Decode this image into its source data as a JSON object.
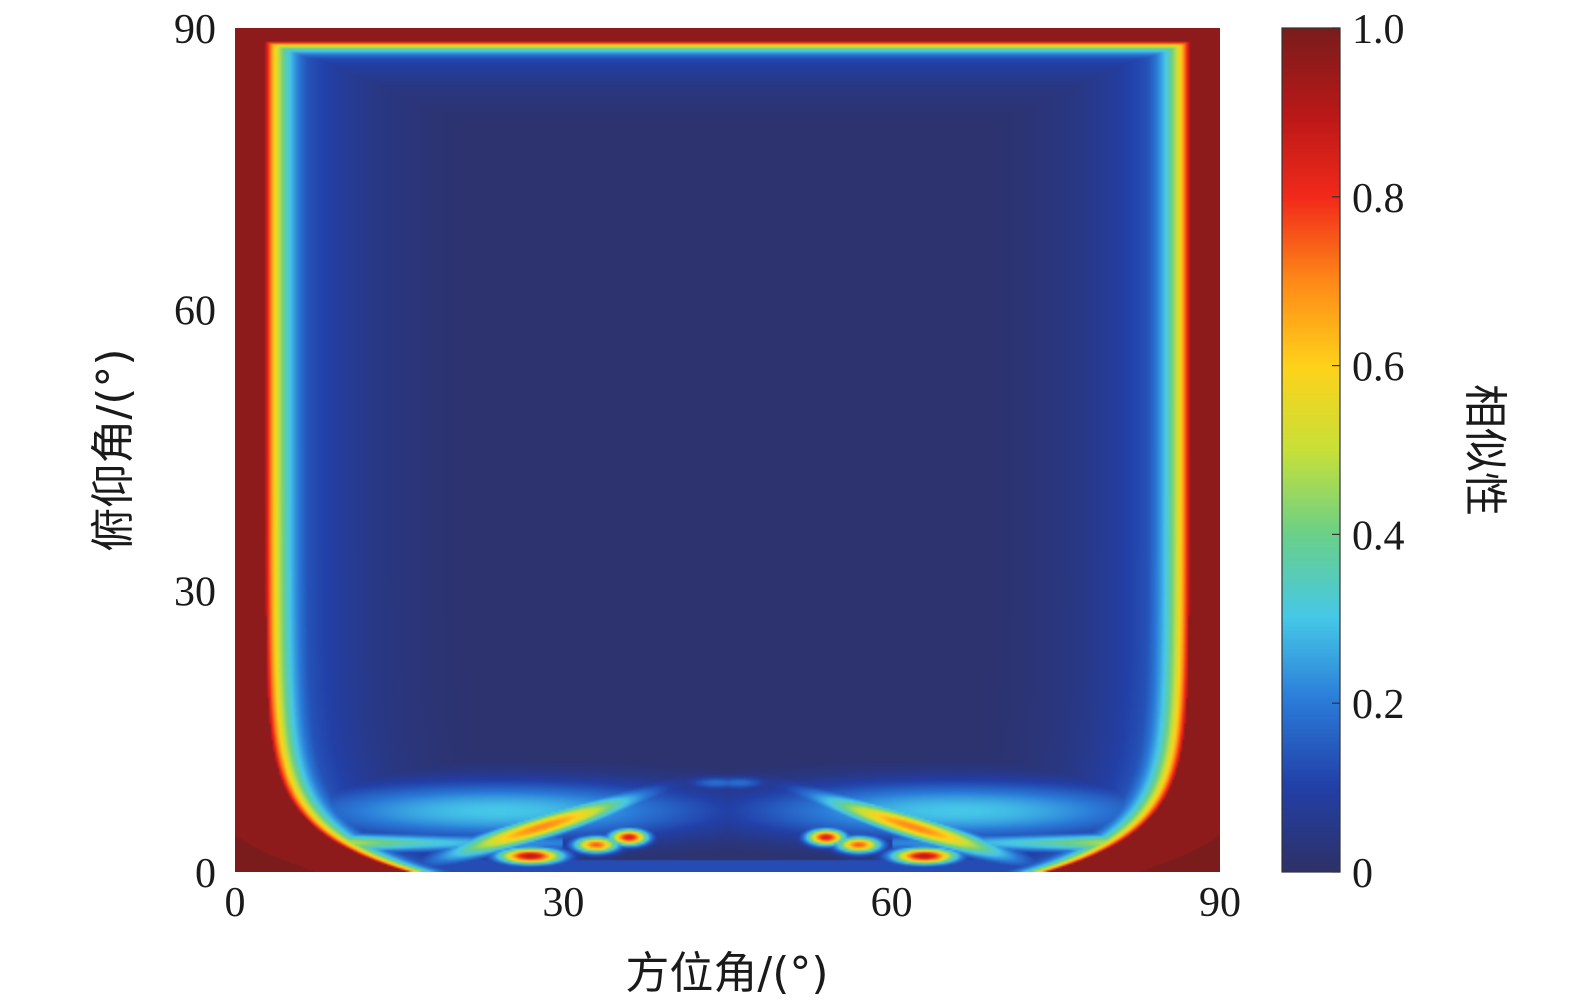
{
  "chart_data": {
    "type": "heatmap",
    "xlabel": "方位角/(°)",
    "ylabel": "俯仰角/(°)",
    "colorbar_label": "相似性",
    "xlim": [
      0,
      90
    ],
    "ylim": [
      0,
      90
    ],
    "clim": [
      0,
      1
    ],
    "x_ticks": [
      "0",
      "30",
      "60",
      "90"
    ],
    "y_ticks": [
      "0",
      "30",
      "60",
      "90"
    ],
    "colorbar_ticks": [
      "0",
      "0.2",
      "0.4",
      "0.6",
      "0.8",
      "1.0"
    ],
    "colormap": "jet",
    "colormap_stops": [
      "#2e3168",
      "#2240a8",
      "#2a7ad8",
      "#46c8e8",
      "#6ad088",
      "#c8e038",
      "#ffd21a",
      "#ff8a18",
      "#f22a1a",
      "#ba1818",
      "#7a1c1c"
    ],
    "grid": false,
    "structure": {
      "symmetry": "mirror about azimuth 45°",
      "high_similarity_regions": [
        "border band at elevation near 90°",
        "border bands at azimuth near 0° and 90°",
        "horizontal band at elevation ≈ 3°",
        "diagonal streaks between elevation 2°–8° near azimuth 25°–40° and 50°–65°"
      ],
      "low_similarity_region": "large interior basin with similarity ≈ 0"
    }
  }
}
